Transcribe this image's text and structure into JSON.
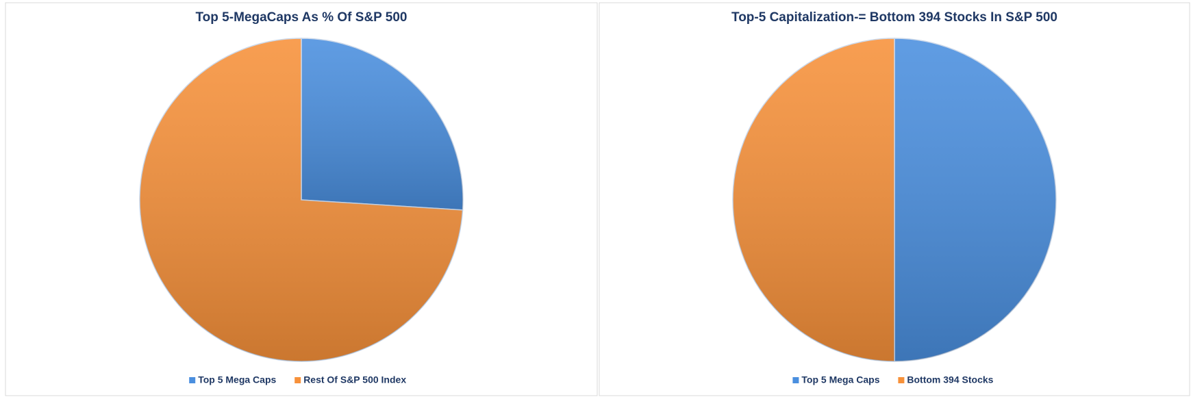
{
  "chart_data": [
    {
      "type": "pie",
      "title": "Top 5-MegaCaps As % Of S&P 500",
      "categories": [
        "Top 5 Mega Caps",
        "Rest Of S&P 500 Index"
      ],
      "values": [
        26,
        74
      ],
      "colors": [
        "#4a8fdf",
        "#f7913a"
      ],
      "legend": "bottom"
    },
    {
      "type": "pie",
      "title": "Top-5 Capitalization-= Bottom 394 Stocks In S&P 500",
      "categories": [
        "Top 5 Mega Caps",
        "Bottom 394 Stocks"
      ],
      "values": [
        50,
        50
      ],
      "colors": [
        "#4a8fdf",
        "#f7913a"
      ],
      "legend": "bottom"
    }
  ]
}
